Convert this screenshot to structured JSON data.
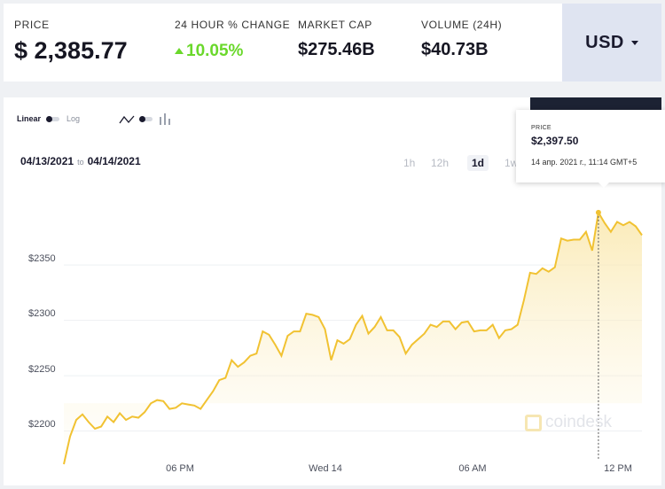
{
  "header": {
    "price": {
      "label": "PRICE",
      "value": "$ 2,385.77"
    },
    "change": {
      "label": "24 HOUR % CHANGE",
      "value": "10.05%"
    },
    "market_cap": {
      "label": "MARKET CAP",
      "value": "$275.46B"
    },
    "volume": {
      "label": "VOLUME (24H)",
      "value": "$40.73B"
    },
    "currency": "USD"
  },
  "controls": {
    "scale_linear": "Linear",
    "scale_log": "Log",
    "date_from": "04/13/2021",
    "date_to_word": "to",
    "date_to": "04/14/2021",
    "ranges": [
      "1h",
      "12h",
      "1d",
      "1w"
    ],
    "active_range": "1d"
  },
  "tooltip": {
    "label": "PRICE",
    "value": "$2,397.50",
    "time": "14 апр. 2021 г., 11:14 GMT+5"
  },
  "watermark": "coindesk",
  "colors": {
    "line": "#f1c232",
    "up": "#6ad82b",
    "currency_bg": "#dfe4f1"
  },
  "chart_data": {
    "type": "area",
    "y_ticks": [
      "$2200",
      "$2250",
      "$2300",
      "$2350"
    ],
    "x_ticks": [
      "06 PM",
      "Wed 14",
      "06 AM",
      "12 PM"
    ],
    "ylim": [
      2170,
      2415
    ],
    "grid": true,
    "series": [
      {
        "values": [
          2170,
          2195,
          2210,
          2215,
          2208,
          2202,
          2204,
          2213,
          2208,
          2216,
          2210,
          2213,
          2212,
          2217,
          2225,
          2228,
          2227,
          2220,
          2221,
          2225,
          2224,
          2223,
          2220,
          2228,
          2236,
          2246,
          2248,
          2264,
          2258,
          2262,
          2268,
          2270,
          2290,
          2287,
          2278,
          2268,
          2286,
          2290,
          2290,
          2306,
          2305,
          2303,
          2292,
          2264,
          2282,
          2279,
          2283,
          2296,
          2304,
          2288,
          2294,
          2303,
          2291,
          2291,
          2285,
          2270,
          2278,
          2283,
          2288,
          2296,
          2294,
          2299,
          2299,
          2292,
          2298,
          2299,
          2290,
          2291,
          2291,
          2296,
          2284,
          2291,
          2292,
          2296,
          2318,
          2343,
          2342,
          2347,
          2344,
          2348,
          2374,
          2372,
          2373,
          2373,
          2380,
          2363,
          2397.5,
          2388,
          2380,
          2389,
          2386,
          2389,
          2385,
          2377
        ]
      }
    ]
  }
}
